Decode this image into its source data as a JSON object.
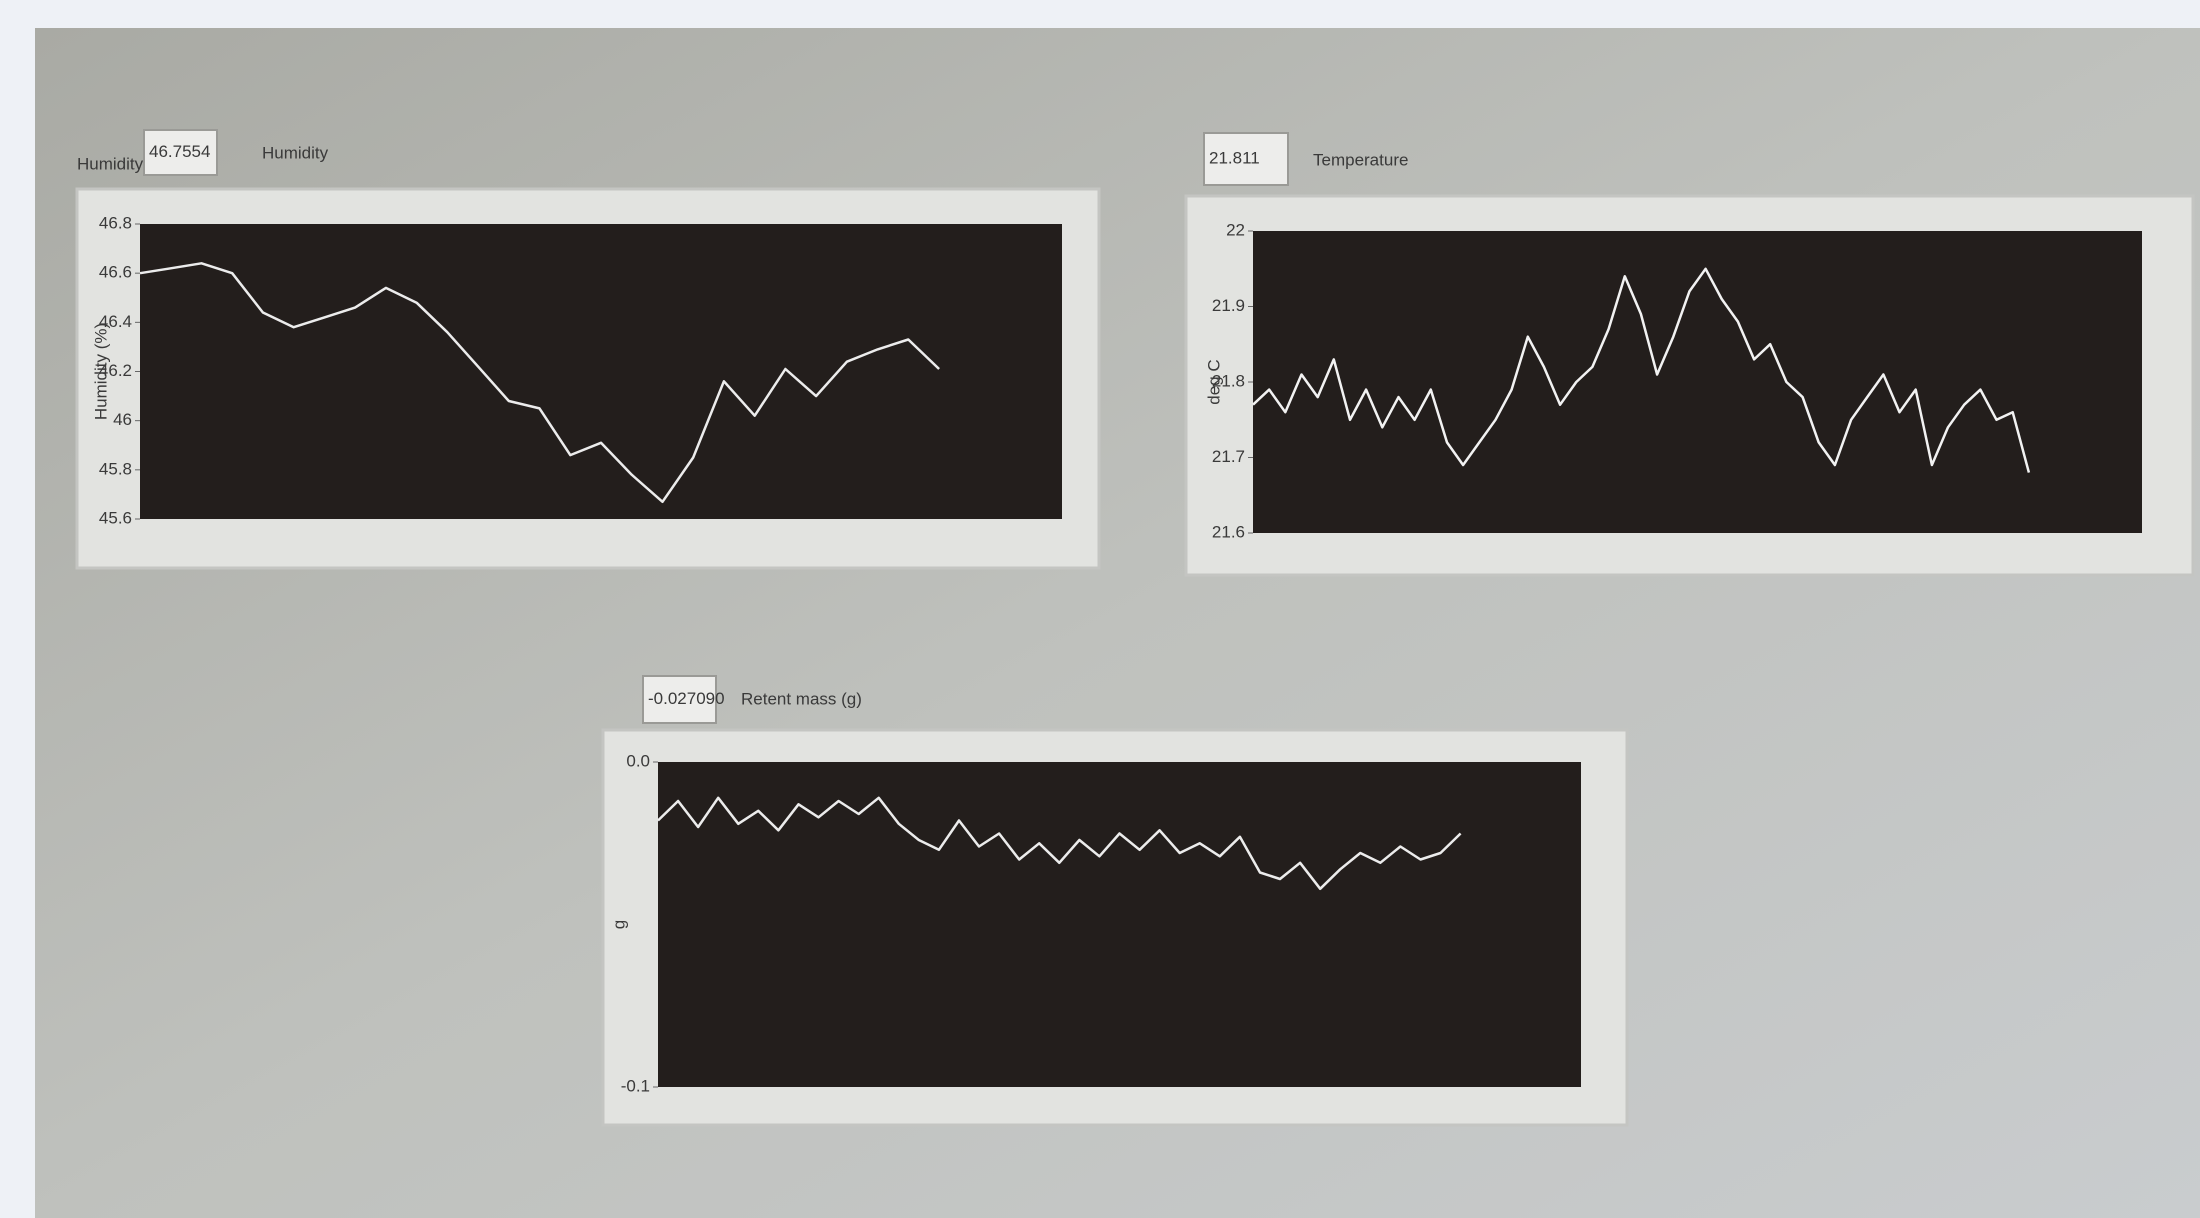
{
  "chart_data": [
    {
      "type": "line",
      "indicator_label": "Humidity",
      "indicator_value": "46.7554",
      "title": "Humidity",
      "ylabel": "Humidity (%)",
      "color": "#ececec",
      "ylim": [
        45.6,
        46.8
      ],
      "yticks": [
        46.8,
        46.6,
        46.4,
        46.2,
        46,
        45.8,
        45.6
      ],
      "values": [
        46.6,
        46.62,
        46.64,
        46.6,
        46.44,
        46.38,
        46.42,
        46.46,
        46.54,
        46.48,
        46.36,
        46.22,
        46.08,
        46.05,
        45.86,
        45.91,
        45.78,
        45.67,
        45.85,
        46.16,
        46.02,
        46.21,
        46.1,
        46.24,
        46.29,
        46.33,
        46.21,
        null,
        null,
        null,
        null
      ]
    },
    {
      "type": "line",
      "indicator_value": "21.811",
      "title": "Temperature",
      "ylabel": "deg C",
      "color": "#f2f2f2",
      "ylim": [
        21.6,
        22
      ],
      "yticks": [
        22,
        21.9,
        21.8,
        21.7,
        21.6
      ],
      "values": [
        21.77,
        21.79,
        21.76,
        21.81,
        21.78,
        21.83,
        21.75,
        21.79,
        21.74,
        21.78,
        21.75,
        21.79,
        21.72,
        21.69,
        21.72,
        21.75,
        21.79,
        21.86,
        21.82,
        21.77,
        21.8,
        21.82,
        21.87,
        21.94,
        21.89,
        21.81,
        21.86,
        21.92,
        21.95,
        21.91,
        21.88,
        21.83,
        21.85,
        21.8,
        21.78,
        21.72,
        21.69,
        21.75,
        21.78,
        21.81,
        21.76,
        21.79,
        21.69,
        21.74,
        21.77,
        21.79,
        21.75,
        21.76,
        21.68,
        null,
        null,
        null,
        null,
        null,
        null,
        null
      ]
    },
    {
      "type": "line",
      "indicator_value": "-0.027090",
      "title": "Retent mass (g)",
      "ylabel": "g",
      "color": "#ececec",
      "ylim": [
        -0.1,
        0
      ],
      "yticks": [
        {
          "value": 0,
          "label": "0.0"
        },
        -0.1
      ],
      "values": [
        -0.018,
        -0.012,
        -0.02,
        -0.011,
        -0.019,
        -0.015,
        -0.021,
        -0.013,
        -0.017,
        -0.012,
        -0.016,
        -0.011,
        -0.019,
        -0.024,
        -0.027,
        -0.018,
        -0.026,
        -0.022,
        -0.03,
        -0.025,
        -0.031,
        -0.024,
        -0.029,
        -0.022,
        -0.027,
        -0.021,
        -0.028,
        -0.025,
        -0.029,
        -0.023,
        -0.034,
        -0.036,
        -0.031,
        -0.039,
        -0.033,
        -0.028,
        -0.031,
        -0.026,
        -0.03,
        -0.028,
        -0.022,
        null,
        null,
        null,
        null,
        null,
        null
      ]
    }
  ]
}
